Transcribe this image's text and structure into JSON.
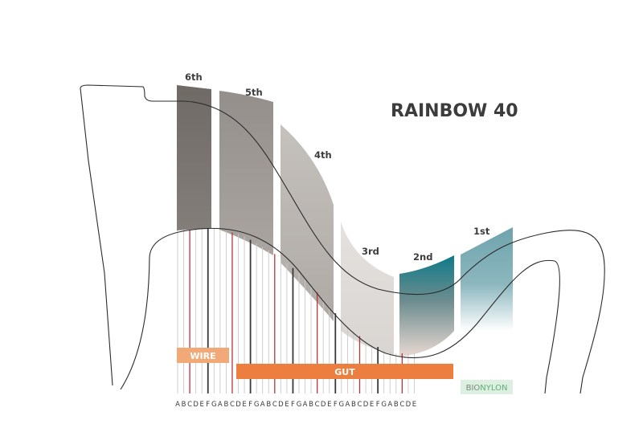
{
  "title": "RAINBOW 40",
  "octaves": [
    {
      "label": "6th",
      "color": "#76716d"
    },
    {
      "label": "5th",
      "color": "#9b9692"
    },
    {
      "label": "4th",
      "color": "#c3bfbb"
    },
    {
      "label": "3rd",
      "color": "#e3e0dd"
    },
    {
      "label": "2nd",
      "color": "#0f7a88"
    },
    {
      "label": "1st",
      "color": "#75a8b2"
    }
  ],
  "materials": [
    {
      "label": "WIRE",
      "color": "#f0a977"
    },
    {
      "label": "GUT",
      "color": "#ec7f3f"
    },
    {
      "label": "BIO",
      "color": "#7a8a7c",
      "bg": "#dcefe0"
    },
    {
      "label": "NYLON",
      "color": "#5fae7a"
    }
  ],
  "notes": [
    "A",
    "B",
    "C",
    "D",
    "E",
    "F",
    "G",
    "A",
    "B",
    "C",
    "D",
    "E",
    "F",
    "G",
    "A",
    "B",
    "C",
    "D",
    "E",
    "F",
    "G",
    "A",
    "B",
    "C",
    "D",
    "E",
    "F",
    "G",
    "A",
    "B",
    "C",
    "D",
    "E",
    "F",
    "G",
    "A",
    "B",
    "C",
    "D",
    "E"
  ],
  "colors": {
    "c_string": "#b5373c",
    "f_string": "#3a3a3a",
    "plain_string": "#c9c9c9",
    "outline": "#2b2b2b"
  }
}
